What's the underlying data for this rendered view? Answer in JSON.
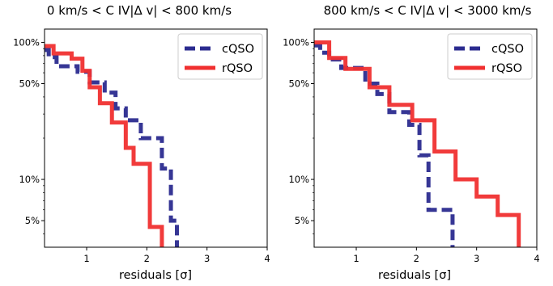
{
  "chart_data": [
    {
      "type": "line",
      "step": "post",
      "title": "0 km/s < C IV|Δ v| < 800 km/s",
      "xlabel": "residuals [σ]",
      "ylabel": "",
      "xlim": [
        0.3,
        4.0
      ],
      "ylim": [
        0.032,
        1.25
      ],
      "yscale": "log",
      "xticks": [
        1,
        2,
        3,
        4
      ],
      "xtick_labels": [
        "1",
        "2",
        "3",
        "4"
      ],
      "yticks": [
        1.0,
        0.5,
        0.1,
        0.05
      ],
      "ytick_labels": [
        "100%",
        "50%",
        "10%",
        "5%"
      ],
      "legend_position": "top-right",
      "series": [
        {
          "name": "cQSO",
          "color": "#2b2b8f",
          "linestyle": "dashed",
          "x": [
            0.3,
            0.37,
            0.5,
            0.85,
            1.05,
            1.3,
            1.48,
            1.65,
            1.9,
            2.25,
            2.4,
            2.5
          ],
          "y": [
            0.88,
            0.78,
            0.67,
            0.61,
            0.51,
            0.43,
            0.33,
            0.27,
            0.2,
            0.12,
            0.05,
            0.032
          ]
        },
        {
          "name": "rQSO",
          "color": "#f03030",
          "linestyle": "solid",
          "x": [
            0.3,
            0.45,
            0.75,
            0.93,
            1.05,
            1.22,
            1.42,
            1.65,
            1.78,
            2.05,
            2.25
          ],
          "y": [
            0.94,
            0.83,
            0.76,
            0.62,
            0.47,
            0.36,
            0.26,
            0.17,
            0.13,
            0.045,
            0.032
          ]
        }
      ]
    },
    {
      "type": "line",
      "step": "post",
      "title": "800 km/s < C IV|Δ v| < 3000 km/s",
      "xlabel": "residuals [σ]",
      "ylabel": "",
      "xlim": [
        0.3,
        4.0
      ],
      "ylim": [
        0.032,
        1.25
      ],
      "yscale": "log",
      "xticks": [
        1,
        2,
        3,
        4
      ],
      "xtick_labels": [
        "1",
        "2",
        "3",
        "4"
      ],
      "yticks": [
        1.0,
        0.5,
        0.1,
        0.05
      ],
      "ytick_labels": [
        "100%",
        "50%",
        "10%",
        "5%"
      ],
      "legend_position": "top-right",
      "series": [
        {
          "name": "cQSO",
          "color": "#2b2b8f",
          "linestyle": "dashed",
          "x": [
            0.3,
            0.4,
            0.55,
            0.75,
            1.15,
            1.35,
            1.55,
            1.88,
            2.05,
            2.2,
            2.6
          ],
          "y": [
            0.95,
            0.84,
            0.75,
            0.65,
            0.5,
            0.42,
            0.31,
            0.25,
            0.15,
            0.06,
            0.032
          ]
        },
        {
          "name": "rQSO",
          "color": "#f03030",
          "linestyle": "solid",
          "x": [
            0.3,
            0.55,
            0.82,
            1.22,
            1.55,
            1.93,
            2.3,
            2.65,
            3.0,
            3.35,
            3.7
          ],
          "y": [
            1.0,
            0.77,
            0.64,
            0.47,
            0.35,
            0.27,
            0.16,
            0.1,
            0.075,
            0.055,
            0.032
          ]
        }
      ]
    }
  ]
}
